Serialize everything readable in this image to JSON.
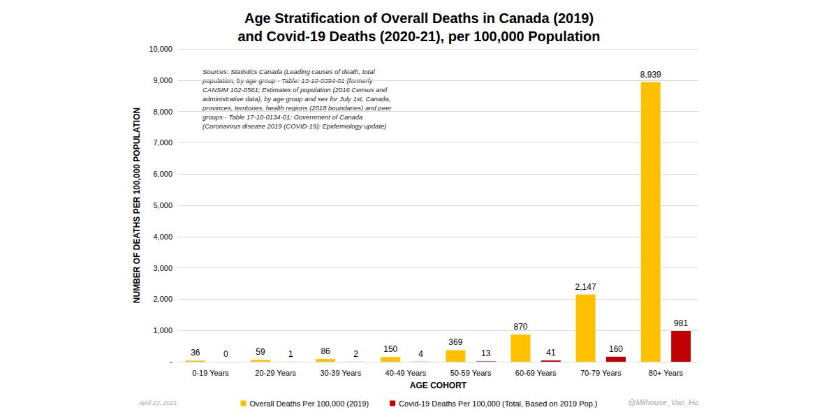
{
  "chart_data": {
    "type": "bar",
    "title": "Age Stratification of Overall Deaths in Canada (2019)\nand Covid-19 Deaths (2020-21), per 100,000 Population",
    "x_label": "AGE COHORT",
    "y_label": "NUMBER OF DEATHS PER 100,000 POPULATION",
    "annotations": [
      "Sources: Statistics Canada (Leading causes of death, total\npopulation, by age group - Table: 13-10-0394-01 (formerly\nCANSIM 102-0561; Estimates of population (2016 Census and\nadministrative data), by age group and sex for July 1st, Canada,\nprovinces, territories, health regions (2018 boundaries) and peer\ngroups - Table 17-10-0134-01; Government of Canada\n(Coronavirus disease 2019 (COVID-19): Epidemiology update)",
      "April 23, 2021",
      "@Milhouse_Van_Ho"
    ],
    "categories": [
      "0-19 Years",
      "20-29 Years",
      "30-39 Years",
      "40-49 Years",
      "50-59 Years",
      "60-69 Years",
      "70-79 Years",
      "80+ Years"
    ],
    "series": [
      {
        "name": "Overall Deaths Per 100,000 (2019)",
        "color": "#FFC000",
        "values": [
          36,
          59,
          86,
          150,
          369,
          870,
          2147,
          8939
        ],
        "value_labels": [
          "36",
          "59",
          "86",
          "150",
          "369",
          "870",
          "2,147",
          "8,939"
        ]
      },
      {
        "name": "Covid-19 Deaths Per 100,000 (Total, Based on 2019 Pop.)",
        "color": "#C00000",
        "values": [
          0,
          1,
          2,
          4,
          13,
          41,
          160,
          981
        ]
      }
    ],
    "ylim": [
      0,
      10000
    ],
    "yticks": [
      {
        "value": 0,
        "label": "-"
      },
      {
        "value": 1000,
        "label": "1,000"
      },
      {
        "value": 2000,
        "label": "2,000"
      },
      {
        "value": 3000,
        "label": "3,000"
      },
      {
        "value": 4000,
        "label": "4,000"
      },
      {
        "value": 5000,
        "label": "5,000"
      },
      {
        "value": 6000,
        "label": "6,000"
      },
      {
        "value": 7000,
        "label": "7,000"
      },
      {
        "value": 8000,
        "label": "8,000"
      },
      {
        "value": 9000,
        "label": "9,000"
      },
      {
        "value": 10000,
        "label": "10,000"
      }
    ],
    "grid": true,
    "legend": "bottom",
    "data_labels": true
  }
}
